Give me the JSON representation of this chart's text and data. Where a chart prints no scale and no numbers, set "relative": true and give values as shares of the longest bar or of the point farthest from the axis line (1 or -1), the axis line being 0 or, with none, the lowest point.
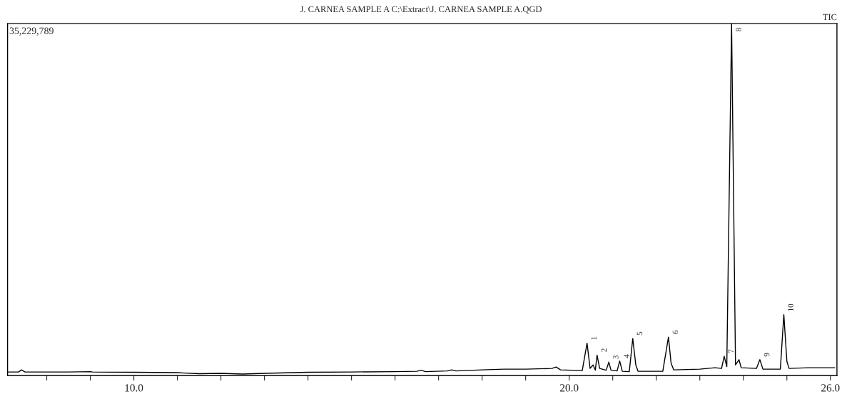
{
  "chart_data": {
    "type": "line",
    "relative": true,
    "title": "J. CARNEA SAMPLE A C:\\Extract\\J. CARNEA SAMPLE A.QGD",
    "x": [
      7.1,
      7.35,
      7.42,
      7.5,
      8.5,
      9.0,
      9.05,
      10.0,
      11.0,
      11.5,
      12.0,
      12.5,
      13.0,
      14.0,
      15.0,
      16.0,
      16.5,
      16.6,
      16.7,
      17.2,
      17.3,
      17.4,
      18.0,
      18.5,
      19.0,
      19.6,
      19.7,
      19.8,
      20.3,
      20.41,
      20.48,
      20.55,
      20.6,
      20.64,
      20.7,
      20.85,
      20.91,
      20.96,
      21.1,
      21.16,
      21.22,
      21.38,
      21.46,
      21.53,
      21.58,
      22.15,
      22.28,
      22.34,
      22.4,
      23.0,
      23.35,
      23.5,
      23.56,
      23.62,
      23.73,
      23.82,
      23.9,
      23.95,
      24.3,
      24.38,
      24.45,
      24.85,
      24.93,
      25.0,
      25.05,
      25.5,
      26.1
    ],
    "series": [
      {
        "color": "#000000",
        "values": [
          0.01,
          0.01,
          0.016,
          0.01,
          0.01,
          0.011,
          0.01,
          0.009,
          0.008,
          0.005,
          0.006,
          0.004,
          0.006,
          0.009,
          0.01,
          0.011,
          0.012,
          0.015,
          0.011,
          0.013,
          0.016,
          0.013,
          0.016,
          0.018,
          0.018,
          0.02,
          0.024,
          0.016,
          0.014,
          0.092,
          0.02,
          0.03,
          0.015,
          0.058,
          0.02,
          0.015,
          0.038,
          0.015,
          0.013,
          0.041,
          0.012,
          0.011,
          0.105,
          0.03,
          0.012,
          0.012,
          0.109,
          0.035,
          0.016,
          0.018,
          0.022,
          0.02,
          0.055,
          0.025,
          1.0,
          0.03,
          0.045,
          0.022,
          0.02,
          0.045,
          0.018,
          0.018,
          0.173,
          0.04,
          0.02,
          0.022,
          0.022
        ]
      }
    ],
    "xlim": [
      7.1,
      26.15
    ],
    "xticks": [
      {
        "value": 8,
        "label": null
      },
      {
        "value": 9,
        "label": null
      },
      {
        "value": 10,
        "label": "10.0"
      },
      {
        "value": 11,
        "label": null
      },
      {
        "value": 12,
        "label": null
      },
      {
        "value": 13,
        "label": null
      },
      {
        "value": 14,
        "label": null
      },
      {
        "value": 15,
        "label": null
      },
      {
        "value": 16,
        "label": null
      },
      {
        "value": 17,
        "label": null
      },
      {
        "value": 18,
        "label": null
      },
      {
        "value": 19,
        "label": null
      },
      {
        "value": 20,
        "label": "20.0"
      },
      {
        "value": 21,
        "label": null
      },
      {
        "value": 22,
        "label": null
      },
      {
        "value": 23,
        "label": null
      },
      {
        "value": 24,
        "label": null
      },
      {
        "value": 25,
        "label": null
      },
      {
        "value": 26,
        "label": "26.0"
      }
    ],
    "annotations": [
      "35,229,789",
      "TIC",
      {
        "text": "1",
        "x": 20.41,
        "y": 0.092
      },
      {
        "text": "2",
        "x": 20.64,
        "y": 0.058
      },
      {
        "text": "3",
        "x": 20.91,
        "y": 0.038
      },
      {
        "text": "4",
        "x": 21.16,
        "y": 0.041
      },
      {
        "text": "5",
        "x": 21.46,
        "y": 0.105
      },
      {
        "text": "6",
        "x": 22.28,
        "y": 0.109
      },
      {
        "text": "7",
        "x": 23.56,
        "y": 0.055
      },
      {
        "text": "8",
        "x": 23.73,
        "y": 1.0
      },
      {
        "text": "9",
        "x": 24.38,
        "y": 0.045
      },
      {
        "text": "10",
        "x": 24.93,
        "y": 0.173
      }
    ],
    "grid": false,
    "legend": false,
    "marker": "none",
    "line_style": "solid"
  }
}
